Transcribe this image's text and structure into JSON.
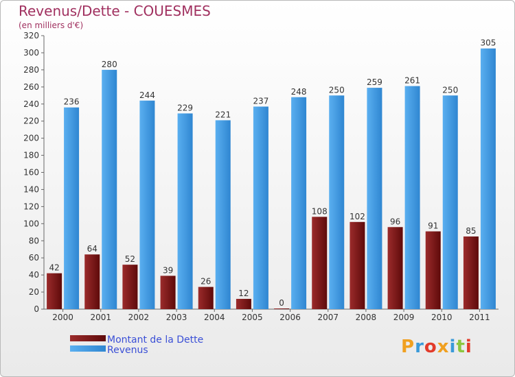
{
  "chart_data": {
    "type": "bar",
    "title": "Revenus/Dette - COUESMES",
    "subtitle": "(en milliers d'€)",
    "categories": [
      "2000",
      "2001",
      "2002",
      "2003",
      "2004",
      "2005",
      "2006",
      "2007",
      "2008",
      "2009",
      "2010",
      "2011"
    ],
    "series": [
      {
        "name": "Montant de la Dette",
        "color": "#8b1a1a",
        "values": [
          42,
          64,
          52,
          39,
          26,
          12,
          0,
          108,
          102,
          96,
          91,
          85
        ]
      },
      {
        "name": "Revenus",
        "color": "#4aa3e8",
        "values": [
          236,
          280,
          244,
          229,
          221,
          237,
          248,
          250,
          259,
          261,
          250,
          305
        ]
      }
    ],
    "ylim": [
      0,
      320
    ],
    "yticks": [
      0,
      20,
      40,
      60,
      80,
      100,
      120,
      140,
      160,
      180,
      200,
      220,
      240,
      260,
      280,
      300,
      320
    ],
    "grid": false,
    "legend_position": "bottom-left"
  },
  "logo": {
    "text": "Proxiti",
    "colors": [
      "#f0a020",
      "#3a9ad9",
      "#e23a2a",
      "#f0a020",
      "#3a9ad9",
      "#8cc63f",
      "#e23a2a"
    ]
  }
}
